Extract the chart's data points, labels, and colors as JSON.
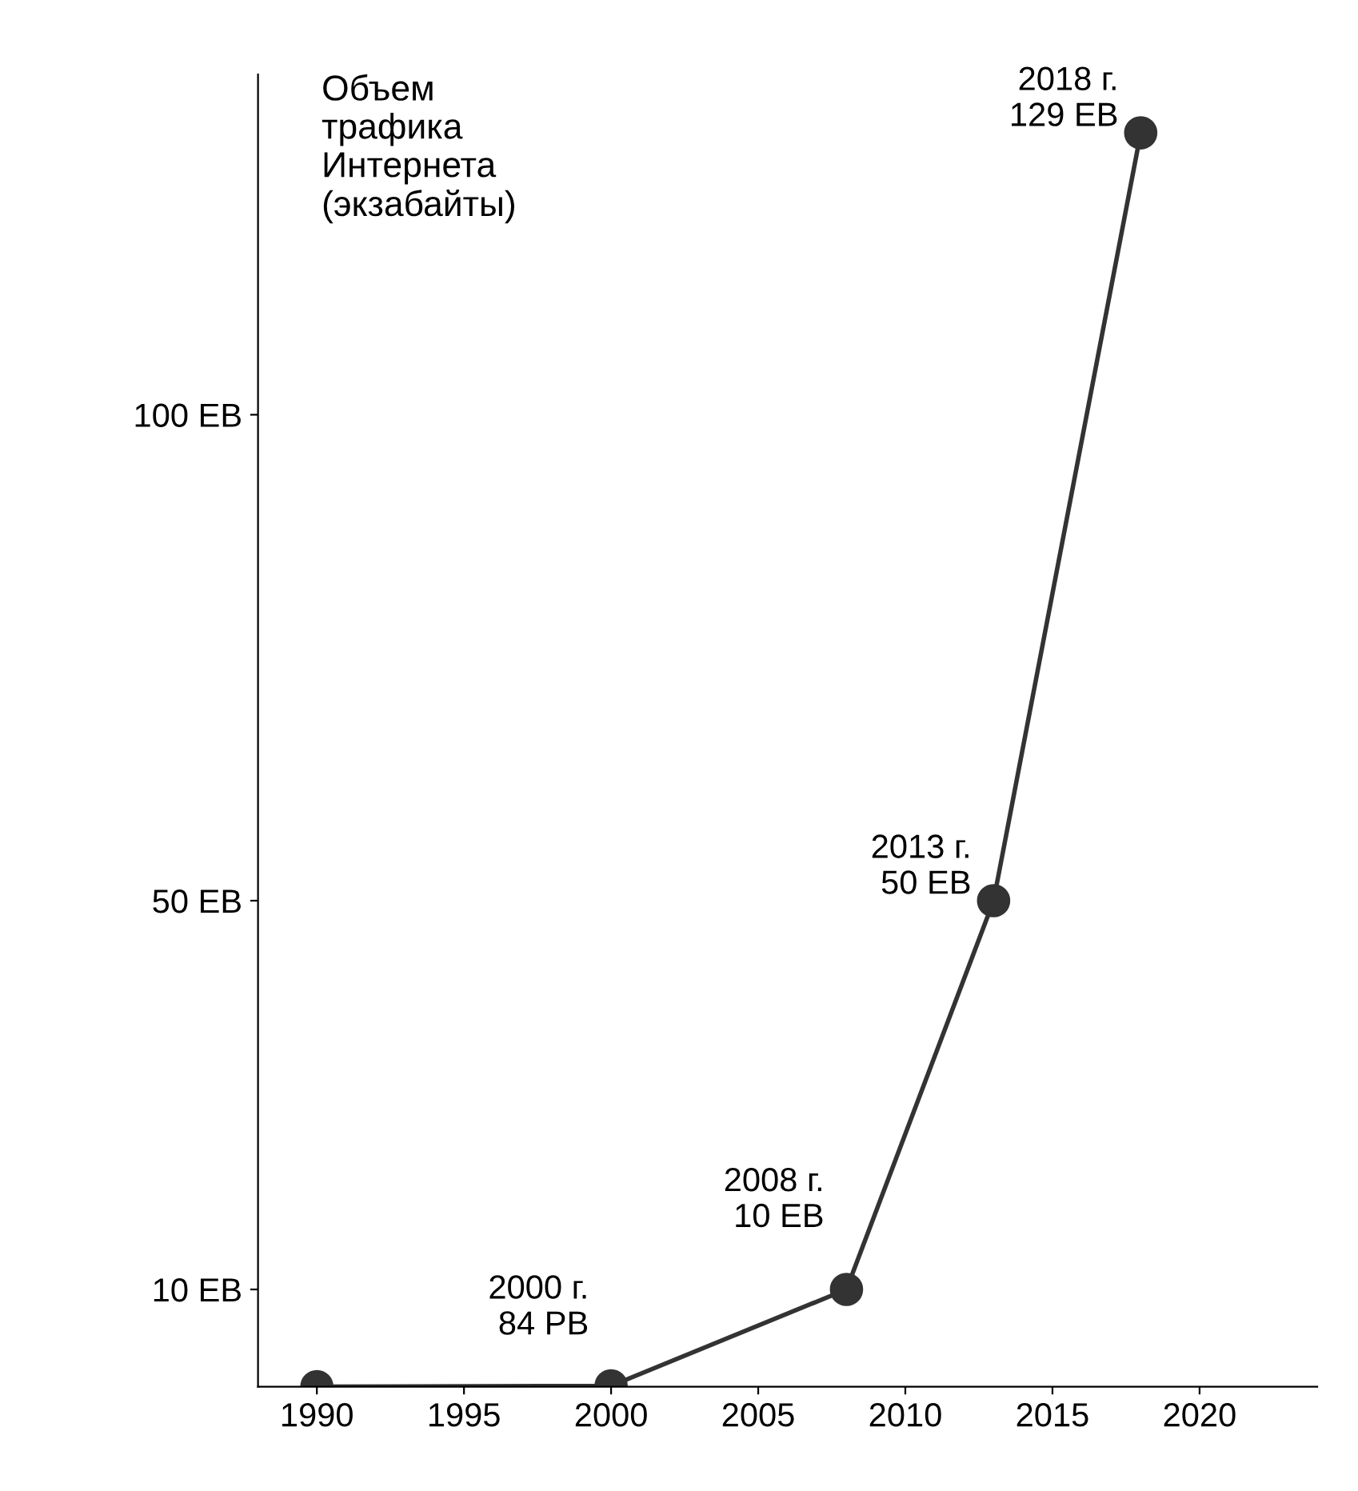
{
  "chart_data": {
    "type": "line",
    "ylabel": "Объем\nтрафика\nИнтернета\n(экзабайты)",
    "x": [
      1990,
      2000,
      2008,
      2013,
      2018
    ],
    "series": [
      {
        "color": "#333333",
        "values": [
          0,
          0.084,
          10,
          50,
          129
        ]
      }
    ],
    "xlim": [
      1988,
      2024
    ],
    "xticks": [
      1990,
      1995,
      2000,
      2005,
      2010,
      2015,
      2020
    ],
    "ylim": [
      0,
      135
    ],
    "yticks": [
      {
        "value": 10,
        "label": "10 EB"
      },
      {
        "value": 50,
        "label": "50 EB"
      },
      {
        "value": 100,
        "label": "100 EB"
      }
    ],
    "marker": "circle",
    "line_style": "solid",
    "grid": false,
    "legend": false,
    "annotations": [
      {
        "text": "2000 г.\n84 PB",
        "x": 2000,
        "y": 0.084
      },
      {
        "text": "2008 г.\n10 EB",
        "x": 2008,
        "y": 10
      },
      {
        "text": "2013 г.\n50 EB",
        "x": 2013,
        "y": 50
      },
      {
        "text": "2018 г.\n129 EB",
        "x": 2018,
        "y": 129
      }
    ]
  }
}
